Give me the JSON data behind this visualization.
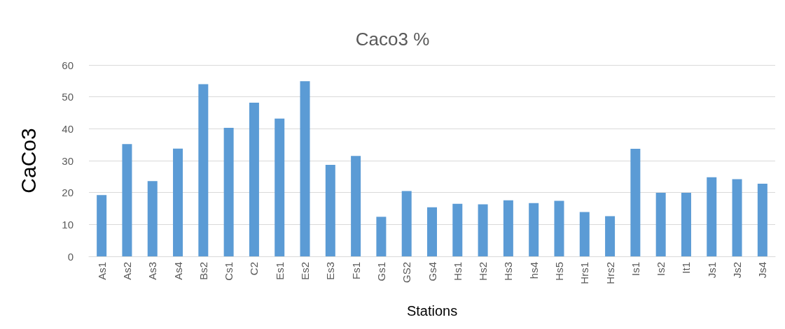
{
  "chart_data": {
    "type": "bar",
    "title": "Caco3 %",
    "xlabel": "Stations",
    "ylabel": "CaCo3",
    "categories": [
      "As1",
      "As2",
      "As3",
      "As4",
      "Bs2",
      "Cs1",
      "C2",
      "Es1",
      "Es2",
      "Es3",
      "Fs1",
      "Gs1",
      "GS2",
      "Gs4",
      "Hs1",
      "Hs2",
      "Hs3",
      "hs4",
      "Hs5",
      "Hrs1",
      "Hrs2",
      "Is1",
      "Is2",
      "It1",
      "Js1",
      "Js2",
      "Js4"
    ],
    "values": [
      19.2,
      35.2,
      23.6,
      33.8,
      54.0,
      40.3,
      48.2,
      43.2,
      54.9,
      28.7,
      31.5,
      12.4,
      20.5,
      15.4,
      16.5,
      16.3,
      17.6,
      16.7,
      17.4,
      13.9,
      12.6,
      33.7,
      19.9,
      19.9,
      24.8,
      24.2,
      22.8
    ],
    "color": "#5b9bd5",
    "ylim": [
      0,
      60
    ],
    "yticks": [
      0,
      10,
      20,
      30,
      40,
      50,
      60
    ],
    "grid": "y"
  }
}
